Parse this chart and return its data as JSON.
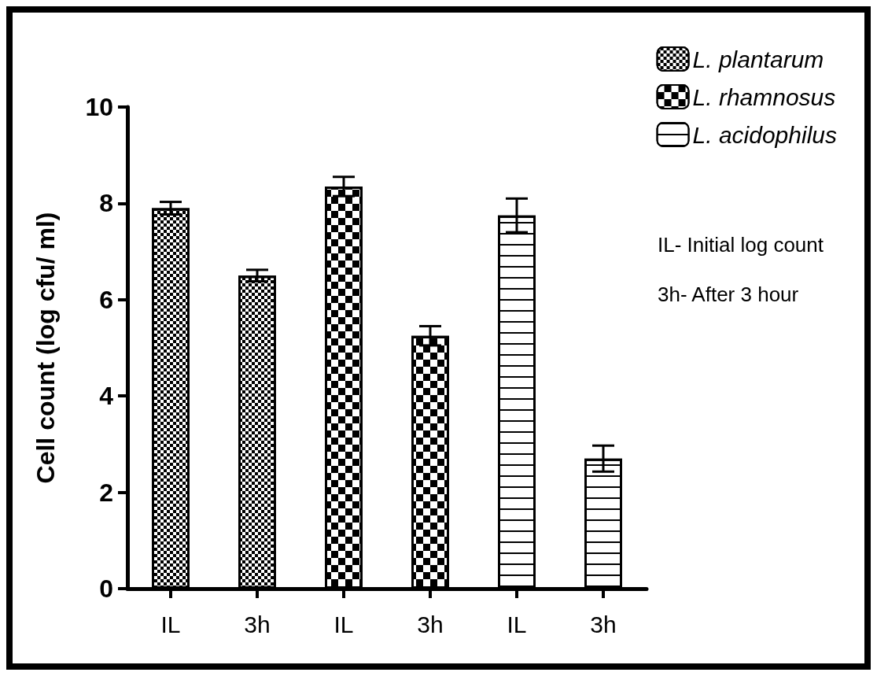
{
  "chart_data": {
    "type": "bar",
    "categories": [
      "IL",
      "3h",
      "IL",
      "3h",
      "IL",
      "3h"
    ],
    "ylabel": "Cell count (log cfu/ ml)",
    "ylim": [
      0,
      10
    ],
    "yticks": [
      0,
      2,
      4,
      6,
      8,
      10
    ],
    "grid": false,
    "legend": "top right",
    "series": [
      {
        "name": "L. plantarum",
        "color": "#000000",
        "values": [
          7.9,
          6.5,
          null,
          null,
          null,
          null
        ],
        "errors": [
          0.13,
          0.12,
          null,
          null,
          null,
          null
        ]
      },
      {
        "name": "L. rhamnosus",
        "color": "#000000",
        "values": [
          null,
          null,
          8.35,
          5.25,
          null,
          null
        ],
        "errors": [
          null,
          null,
          0.2,
          0.2,
          null,
          null
        ]
      },
      {
        "name": "L. acidophilus",
        "color": "#000000",
        "values": [
          null,
          null,
          null,
          null,
          7.75,
          2.7
        ],
        "errors": [
          null,
          null,
          null,
          null,
          0.35,
          0.27
        ]
      }
    ],
    "annotations": [
      "IL- Initial log count",
      "3h- After 3 hour"
    ]
  }
}
